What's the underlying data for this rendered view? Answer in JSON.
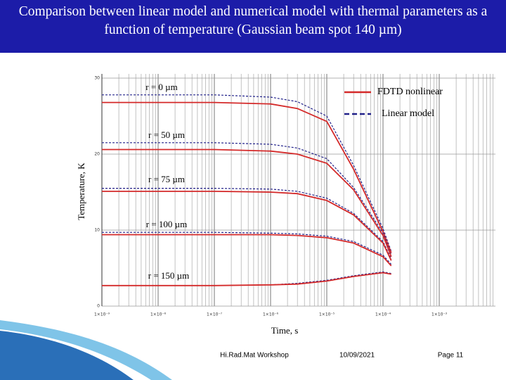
{
  "header": {
    "title": "Comparison between  linear model and  numerical model with thermal parameters as a function of temperature (Gaussian beam spot 140 µm)"
  },
  "chart_data": {
    "type": "line",
    "xlabel": "Time, s",
    "ylabel": "Temperature,  K",
    "x_scale": "log",
    "grid": true,
    "x": [
      1e-09,
      1e-08,
      1e-07,
      1e-06,
      3e-06,
      1e-05,
      3e-05,
      0.0001,
      0.00014
    ],
    "xlim": [
      1e-09,
      0.01
    ],
    "xticks": [
      {
        "value": 1e-09,
        "label": "1×10⁻⁹"
      },
      {
        "value": 1e-08,
        "label": "1×10⁻⁸"
      },
      {
        "value": 1e-07,
        "label": "1×10⁻⁷"
      },
      {
        "value": 1e-06,
        "label": "1×10⁻⁶"
      },
      {
        "value": 1e-05,
        "label": "1×10⁻⁵"
      },
      {
        "value": 0.0001,
        "label": "1×10⁻⁴"
      },
      {
        "value": 0.001,
        "label": "1×10⁻³"
      }
    ],
    "ylim": [
      0,
      30
    ],
    "yticks": [
      0,
      10,
      20,
      30
    ],
    "legend": [
      {
        "name": "FDTD nonlinear",
        "color": "#d42a2a",
        "dashed": false
      },
      {
        "name": "Linear model",
        "color": "#22228a",
        "dashed": true
      }
    ],
    "curves": [
      {
        "label": "r = 0 µm",
        "fdtd": [
          26.8,
          26.8,
          26.8,
          26.6,
          26.0,
          24.3,
          18.0,
          9.8,
          7.0
        ],
        "linear": [
          27.8,
          27.8,
          27.8,
          27.5,
          26.9,
          25.0,
          18.5,
          10.2,
          7.2
        ]
      },
      {
        "label": "r = 50 µm",
        "fdtd": [
          20.6,
          20.6,
          20.6,
          20.4,
          20.0,
          18.8,
          15.3,
          9.3,
          6.5
        ],
        "linear": [
          21.5,
          21.5,
          21.5,
          21.3,
          20.8,
          19.4,
          15.6,
          9.6,
          6.7
        ]
      },
      {
        "label": "r = 75 µm",
        "fdtd": [
          15.1,
          15.1,
          15.1,
          15.0,
          14.8,
          13.9,
          12.0,
          8.3,
          6.0
        ],
        "linear": [
          15.5,
          15.5,
          15.5,
          15.4,
          15.1,
          14.2,
          12.2,
          8.5,
          6.2
        ]
      },
      {
        "label": "r = 100 µm",
        "fdtd": [
          9.4,
          9.4,
          9.4,
          9.4,
          9.3,
          9.0,
          8.3,
          6.5,
          5.3
        ],
        "linear": [
          9.7,
          9.7,
          9.7,
          9.6,
          9.5,
          9.2,
          8.5,
          6.7,
          5.5
        ]
      },
      {
        "label": "r = 150 µm",
        "fdtd": [
          2.7,
          2.7,
          2.7,
          2.8,
          2.9,
          3.3,
          3.9,
          4.4,
          4.2
        ],
        "linear": [
          2.7,
          2.7,
          2.7,
          2.8,
          3.0,
          3.4,
          4.0,
          4.5,
          4.3
        ]
      }
    ]
  },
  "footer": {
    "event": "Hi.Rad.Mat  Workshop",
    "date": "10/09/2021",
    "page": "Page 11"
  }
}
